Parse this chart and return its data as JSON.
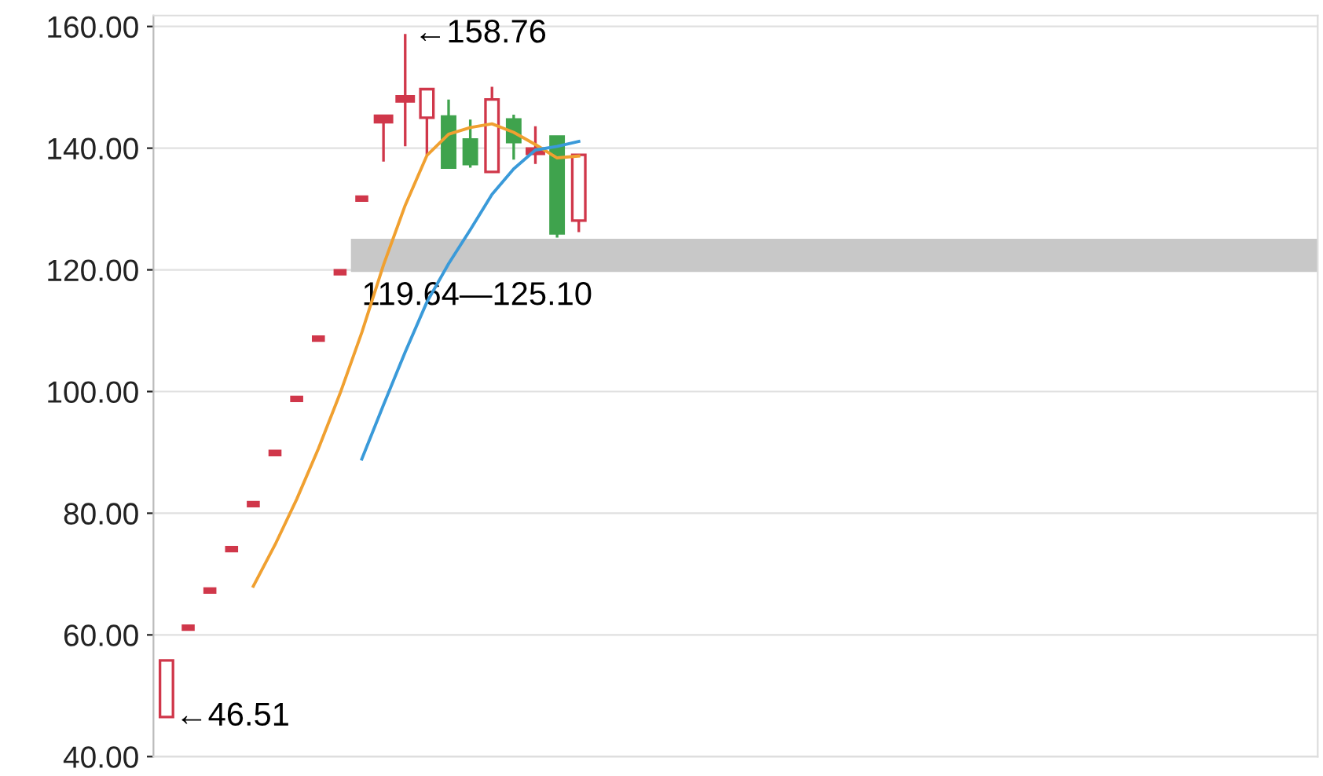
{
  "chart_data": {
    "type": "candlestick",
    "categories": [
      null,
      null,
      null,
      null,
      null,
      null,
      null,
      null,
      null,
      null,
      null,
      null,
      null,
      null,
      null,
      null,
      null,
      null,
      null,
      null
    ],
    "ohlc": [
      [
        46.51,
        55.8,
        46.51,
        55.8
      ],
      [
        61.2,
        61.2,
        61.2,
        61.2
      ],
      [
        67.3,
        67.3,
        67.3,
        67.3
      ],
      [
        74.1,
        74.1,
        74.1,
        74.1
      ],
      [
        81.5,
        81.5,
        81.5,
        81.5
      ],
      [
        89.9,
        89.9,
        89.9,
        89.9
      ],
      [
        98.8,
        98.8,
        98.8,
        98.8
      ],
      [
        108.7,
        108.7,
        108.7,
        108.7
      ],
      [
        119.6,
        119.6,
        119.6,
        119.6
      ],
      [
        131.7,
        131.7,
        131.7,
        131.7
      ],
      [
        144.6,
        145.2,
        137.8,
        145.0
      ],
      [
        148.0,
        158.76,
        140.3,
        148.2
      ],
      [
        145.0,
        149.9,
        138.9,
        149.7
      ],
      [
        145.2,
        148.0,
        136.8,
        136.8
      ],
      [
        141.4,
        144.7,
        136.8,
        137.4
      ],
      [
        136.1,
        150.1,
        136.1,
        148.0
      ],
      [
        144.7,
        145.5,
        138.1,
        141.0
      ],
      [
        139.4,
        143.6,
        137.4,
        139.6
      ],
      [
        141.9,
        141.9,
        125.3,
        126.0
      ],
      [
        128.1,
        138.9,
        126.2,
        138.9
      ]
    ],
    "colors": [
      "#d0374a",
      "#d0374a",
      "#d0374a",
      "#d0374a",
      "#d0374a",
      "#d0374a",
      "#d0374a",
      "#d0374a",
      "#d0374a",
      "#d0374a",
      "#d0374a",
      "#d0374a",
      "#d0374a",
      "#3fa34d",
      "#3fa34d",
      "#d0374a",
      "#3fa34d",
      "#d0374a",
      "#3fa34d",
      "#d0374a"
    ],
    "series": [
      {
        "type": "line",
        "color": "#f0a030",
        "values": [
          null,
          null,
          null,
          null,
          68.0,
          74.8,
          82.3,
          90.6,
          99.7,
          109.7,
          120.8,
          130.6,
          138.8,
          142.3,
          143.4,
          144.0,
          142.6,
          140.6,
          138.4,
          138.7
        ]
      },
      {
        "type": "line",
        "color": "#3a9ad9",
        "values": [
          null,
          null,
          null,
          null,
          null,
          null,
          null,
          null,
          null,
          88.9,
          97.8,
          106.5,
          114.7,
          121.0,
          126.6,
          132.4,
          136.6,
          139.7,
          140.3,
          141.1
        ]
      }
    ],
    "ylim": [
      40,
      161.8
    ],
    "yticks": [
      {
        "value": 40,
        "label": "40.00"
      },
      {
        "value": 60,
        "label": "60.00"
      },
      {
        "value": 80,
        "label": "80.00"
      },
      {
        "value": 100,
        "label": "100.00"
      },
      {
        "value": 120,
        "label": "120.00"
      },
      {
        "value": 140,
        "label": "140.00"
      },
      {
        "value": 160,
        "label": "160.00"
      }
    ],
    "grid": "y",
    "tick_labels": "y",
    "bands": [
      {
        "axis": "y",
        "from": 119.64,
        "to": 125.1,
        "label": "119.64—125.10",
        "color": "#c8c8c8"
      }
    ],
    "annotations": [
      "←158.76",
      "←46.51"
    ]
  }
}
